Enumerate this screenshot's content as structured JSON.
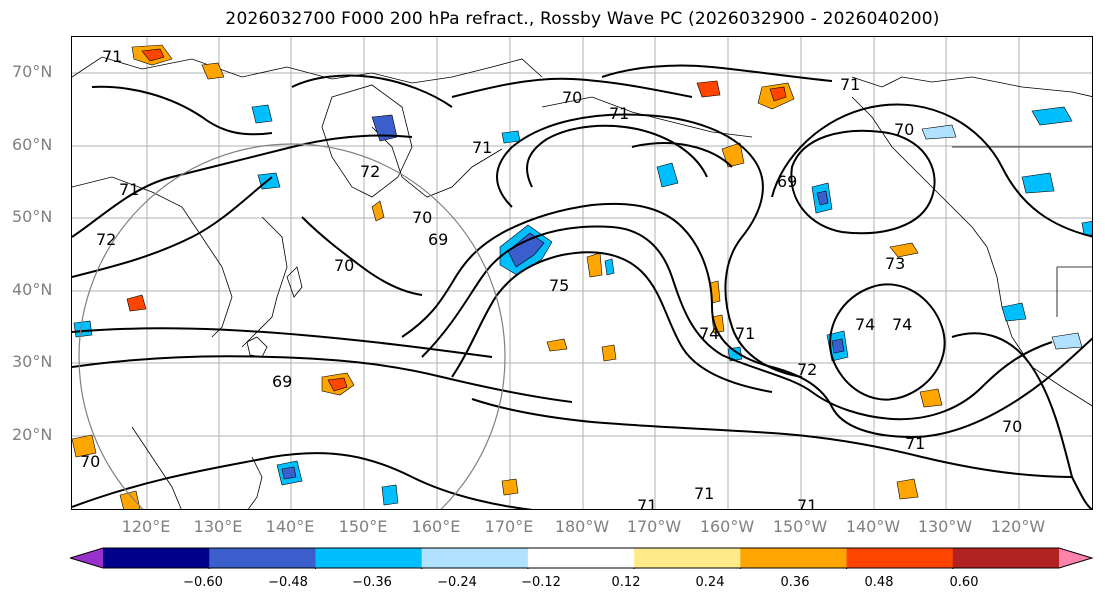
{
  "title": "2026032700 F000 200 hPa refract., Rossby Wave PC (2026032900 - 2026040200)",
  "latitude_labels": [
    "70°N",
    "60°N",
    "50°N",
    "40°N",
    "30°N",
    "20°N"
  ],
  "longitude_labels": [
    "120°E",
    "130°E",
    "140°E",
    "150°E",
    "160°E",
    "170°E",
    "180°W",
    "170°W",
    "160°W",
    "150°W",
    "140°W",
    "130°W",
    "120°W"
  ],
  "contour_labels": [
    "71",
    "70",
    "71",
    "71",
    "70",
    "72",
    "70",
    "69",
    "71",
    "72",
    "70",
    "69",
    "75",
    "74",
    "71",
    "72",
    "73",
    "74",
    "74",
    "69",
    "70",
    "71",
    "71",
    "71",
    "71",
    "70",
    "71"
  ],
  "colorbar": {
    "labels": [
      "−0.60",
      "−0.48",
      "−0.36",
      "−0.24",
      "−0.12",
      "0.12",
      "0.24",
      "0.36",
      "0.48",
      "0.60"
    ],
    "colors": [
      "#9932cc",
      "#00008b",
      "#3a5fcd",
      "#00bfff",
      "#b0e2ff",
      "#ffffff",
      "#ffea8a",
      "#ffa500",
      "#ff4500",
      "#b22222",
      "#ff82ab"
    ]
  }
}
